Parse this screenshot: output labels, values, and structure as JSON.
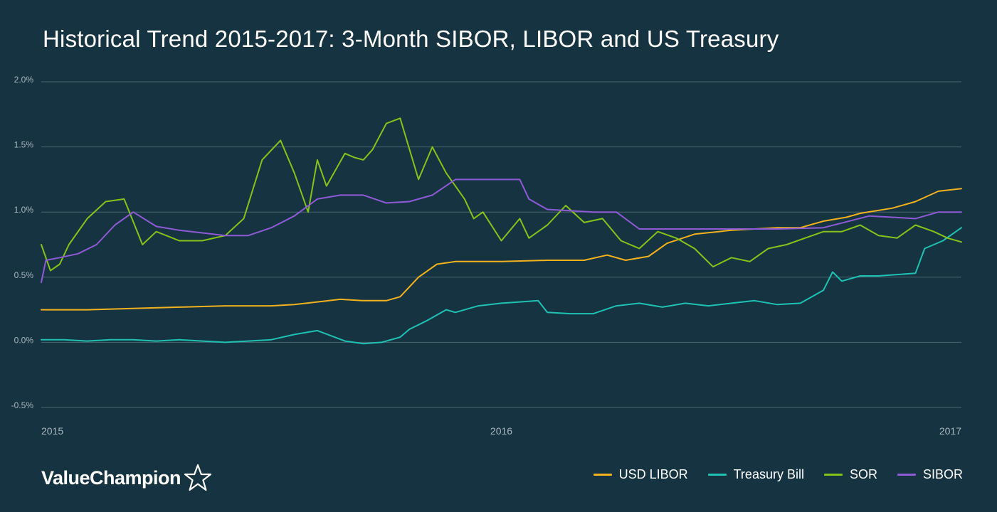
{
  "title": "Historical Trend 2015-2017: 3-Month SIBOR, LIBOR and US Treasury",
  "brand": {
    "name": "ValueChampion",
    "logo_icon": "star-outline-icon"
  },
  "legend": [
    {
      "label": "USD LIBOR",
      "color": "#f2b21e"
    },
    {
      "label": "Treasury Bill",
      "color": "#1fc1b3"
    },
    {
      "label": "SOR",
      "color": "#86c31a"
    },
    {
      "label": "SIBOR",
      "color": "#8f5ad6"
    }
  ],
  "chart_data": {
    "type": "line",
    "title": "Historical Trend 2015-2017: 3-Month SIBOR, LIBOR and US Treasury",
    "xlabel": "",
    "ylabel": "",
    "x_unit": "year (decimal)",
    "xlim": [
      2015.0,
      2017.0
    ],
    "ylim": [
      -0.5,
      2.0
    ],
    "y_ticks": [
      "2.0%",
      "1.5%",
      "1.0%",
      "0.5%",
      "0.0%",
      "-0.5%"
    ],
    "y_tick_values": [
      2.0,
      1.5,
      1.0,
      0.5,
      0.0,
      -0.5
    ],
    "x_ticks": [
      "2015",
      "2016",
      "2017"
    ],
    "x_tick_values": [
      2015.0,
      2016.0,
      2017.0
    ],
    "grid": "horizontal",
    "legend_position": "bottom-right",
    "series": [
      {
        "name": "USD LIBOR",
        "color": "#f2b21e",
        "x": [
          2015.0,
          2015.1,
          2015.2,
          2015.3,
          2015.4,
          2015.5,
          2015.55,
          2015.6,
          2015.65,
          2015.7,
          2015.75,
          2015.78,
          2015.82,
          2015.86,
          2015.9,
          2016.0,
          2016.1,
          2016.18,
          2016.23,
          2016.27,
          2016.32,
          2016.36,
          2016.42,
          2016.5,
          2016.55,
          2016.6,
          2016.65,
          2016.7,
          2016.75,
          2016.78,
          2016.85,
          2016.9,
          2016.95,
          2017.0
        ],
        "values": [
          0.25,
          0.25,
          0.26,
          0.27,
          0.28,
          0.28,
          0.29,
          0.31,
          0.33,
          0.32,
          0.32,
          0.35,
          0.5,
          0.6,
          0.62,
          0.62,
          0.63,
          0.63,
          0.67,
          0.63,
          0.66,
          0.76,
          0.83,
          0.86,
          0.87,
          0.88,
          0.88,
          0.93,
          0.96,
          0.99,
          1.03,
          1.08,
          1.16,
          1.18
        ]
      },
      {
        "name": "Treasury Bill",
        "color": "#1fc1b3",
        "x": [
          2015.0,
          2015.05,
          2015.1,
          2015.15,
          2015.2,
          2015.25,
          2015.3,
          2015.35,
          2015.4,
          2015.45,
          2015.5,
          2015.55,
          2015.6,
          2015.63,
          2015.66,
          2015.7,
          2015.74,
          2015.78,
          2015.8,
          2015.84,
          2015.88,
          2015.9,
          2015.95,
          2016.0,
          2016.04,
          2016.08,
          2016.1,
          2016.15,
          2016.2,
          2016.25,
          2016.3,
          2016.35,
          2016.4,
          2016.45,
          2016.5,
          2016.55,
          2016.6,
          2016.65,
          2016.7,
          2016.72,
          2016.74,
          2016.78,
          2016.82,
          2016.86,
          2016.9,
          2016.92,
          2016.96,
          2017.0
        ],
        "values": [
          0.02,
          0.02,
          0.01,
          0.02,
          0.02,
          0.01,
          0.02,
          0.01,
          0.0,
          0.01,
          0.02,
          0.06,
          0.09,
          0.05,
          0.01,
          -0.01,
          0.0,
          0.04,
          0.1,
          0.17,
          0.25,
          0.23,
          0.28,
          0.3,
          0.31,
          0.32,
          0.23,
          0.22,
          0.22,
          0.28,
          0.3,
          0.27,
          0.3,
          0.28,
          0.3,
          0.32,
          0.29,
          0.3,
          0.4,
          0.54,
          0.47,
          0.51,
          0.51,
          0.52,
          0.53,
          0.72,
          0.78,
          0.88
        ]
      },
      {
        "name": "SOR",
        "color": "#86c31a",
        "x": [
          2015.0,
          2015.02,
          2015.04,
          2015.06,
          2015.1,
          2015.14,
          2015.18,
          2015.22,
          2015.25,
          2015.3,
          2015.35,
          2015.4,
          2015.44,
          2015.48,
          2015.52,
          2015.55,
          2015.58,
          2015.6,
          2015.62,
          2015.66,
          2015.68,
          2015.7,
          2015.72,
          2015.75,
          2015.78,
          2015.82,
          2015.85,
          2015.88,
          2015.9,
          2015.92,
          2015.94,
          2015.96,
          2016.0,
          2016.04,
          2016.06,
          2016.1,
          2016.14,
          2016.18,
          2016.22,
          2016.26,
          2016.3,
          2016.34,
          2016.38,
          2016.42,
          2016.46,
          2016.5,
          2016.54,
          2016.58,
          2016.62,
          2016.66,
          2016.7,
          2016.74,
          2016.78,
          2016.82,
          2016.86,
          2016.9,
          2016.94,
          2016.97,
          2017.0
        ],
        "values": [
          0.75,
          0.55,
          0.6,
          0.75,
          0.95,
          1.08,
          1.1,
          0.75,
          0.85,
          0.78,
          0.78,
          0.82,
          0.95,
          1.4,
          1.55,
          1.3,
          1.0,
          1.4,
          1.2,
          1.45,
          1.42,
          1.4,
          1.48,
          1.68,
          1.72,
          1.25,
          1.5,
          1.3,
          1.2,
          1.1,
          0.95,
          1.0,
          0.78,
          0.95,
          0.8,
          0.9,
          1.05,
          0.92,
          0.95,
          0.78,
          0.72,
          0.85,
          0.8,
          0.72,
          0.58,
          0.65,
          0.62,
          0.72,
          0.75,
          0.8,
          0.85,
          0.85,
          0.9,
          0.82,
          0.8,
          0.9,
          0.85,
          0.8,
          0.77
        ]
      },
      {
        "name": "SIBOR",
        "color": "#8f5ad6",
        "x": [
          2015.0,
          2015.01,
          2015.04,
          2015.08,
          2015.12,
          2015.16,
          2015.2,
          2015.25,
          2015.3,
          2015.4,
          2015.45,
          2015.5,
          2015.55,
          2015.6,
          2015.65,
          2015.7,
          2015.75,
          2015.8,
          2015.85,
          2015.9,
          2016.0,
          2016.04,
          2016.06,
          2016.1,
          2016.2,
          2016.25,
          2016.3,
          2016.5,
          2016.6,
          2016.7,
          2016.8,
          2016.9,
          2016.95,
          2017.0
        ],
        "values": [
          0.46,
          0.63,
          0.65,
          0.68,
          0.75,
          0.9,
          1.0,
          0.89,
          0.86,
          0.82,
          0.82,
          0.88,
          0.97,
          1.1,
          1.13,
          1.13,
          1.07,
          1.08,
          1.13,
          1.25,
          1.25,
          1.25,
          1.1,
          1.02,
          1.0,
          1.0,
          0.87,
          0.87,
          0.87,
          0.88,
          0.97,
          0.95,
          1.0,
          1.0
        ]
      }
    ]
  }
}
